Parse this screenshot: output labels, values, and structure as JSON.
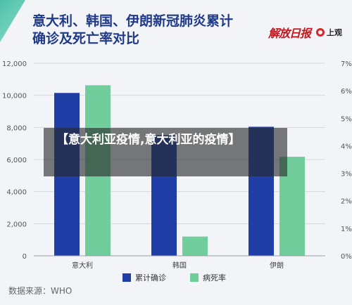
{
  "header": {
    "title_line1": "意大利、韩国、伊朗新冠肺炎累计",
    "title_line2": "确诊及死亡率对比"
  },
  "logos": {
    "logo1": "解放日报",
    "logo2": "上观"
  },
  "overlay": {
    "text": "【意大利亚疫情,意大利亚的疫情】"
  },
  "footer": {
    "source": "数据来源：WHO"
  },
  "colors": {
    "confirmed": "#1f3fa6",
    "death_rate": "#72cd9d",
    "title": "#1f3a8a"
  },
  "chart_data": {
    "type": "bar",
    "title": "意大利、韩国、伊朗新冠肺炎累计确诊及死亡率对比",
    "categories": [
      "意大利",
      "韩国",
      "伊朗"
    ],
    "series": [
      {
        "name": "累计确诊",
        "axis": "left",
        "values": [
          10149,
          7513,
          8042
        ]
      },
      {
        "name": "病死率",
        "axis": "right",
        "values": [
          6.2,
          0.7,
          3.6
        ]
      }
    ],
    "y_left": {
      "lim": [
        0,
        12000
      ],
      "ticks": [
        "0",
        "2,000",
        "4,000",
        "6,000",
        "8,000",
        "10,000",
        "12,000"
      ]
    },
    "y_right": {
      "lim": [
        0,
        7
      ],
      "ticks": [
        "0%",
        "1%",
        "2%",
        "3%",
        "4%",
        "5%",
        "6%",
        "7%"
      ]
    },
    "grid": true,
    "legend": "bottom-center"
  }
}
